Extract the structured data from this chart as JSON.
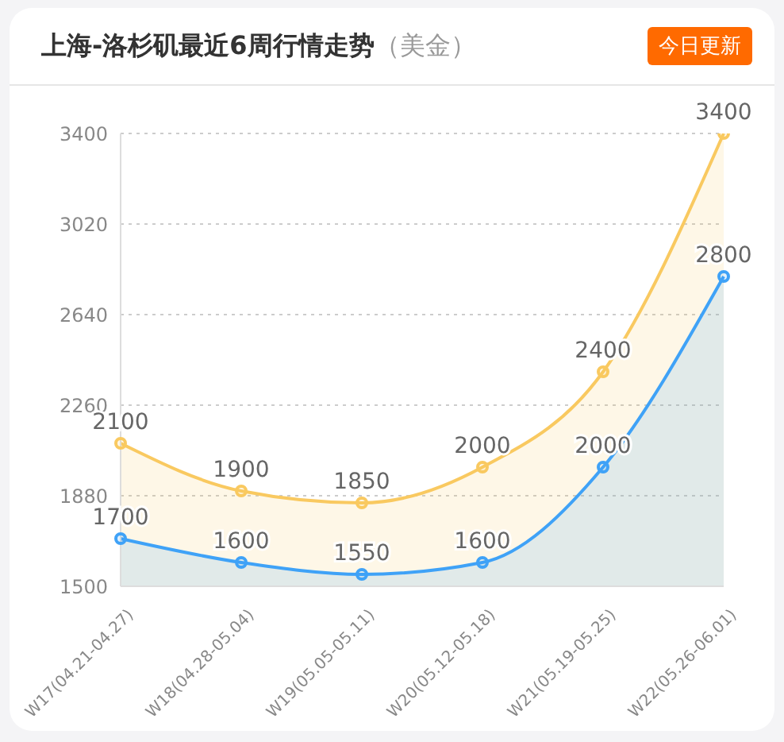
{
  "chart_data": {
    "type": "area",
    "title": "上海-洛杉矶最近6周行情走势",
    "subtitle": "（美金）",
    "annotations": [
      "今日更新"
    ],
    "categories": [
      "W17(04.21-04.27)",
      "W18(04.28-05.04)",
      "W19(05.05-05.11)",
      "W20(05.12-05.18)",
      "W21(05.19-05.25)",
      "W22(05.26-06.01)"
    ],
    "series": [
      {
        "color": "#f9c960",
        "values": [
          2100,
          1900,
          1850,
          2000,
          2400,
          3400
        ]
      },
      {
        "color": "#3fa2f7",
        "values": [
          1700,
          1600,
          1550,
          1600,
          2000,
          2800
        ]
      }
    ],
    "ylim": [
      1500,
      3400
    ],
    "yticks": [
      1500,
      1880,
      2260,
      2640,
      3020,
      3400
    ],
    "grid": "y",
    "marker": "circle",
    "line_style": "solid",
    "data_labels": true
  }
}
